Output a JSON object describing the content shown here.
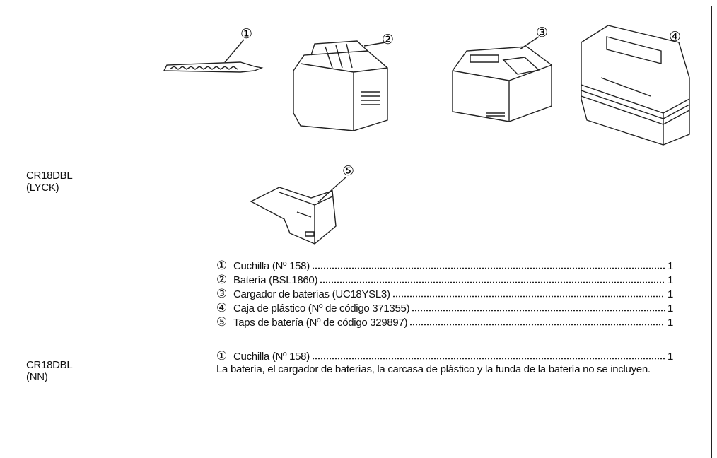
{
  "table": {
    "rows": [
      {
        "model": [
          "CR18DBL",
          "(LYCK)"
        ],
        "figure_labels": [
          "①",
          "②",
          "③",
          "④",
          "⑤"
        ],
        "items": [
          {
            "num": "①",
            "name": "Cuchilla (Nº 158)",
            "qty": "1"
          },
          {
            "num": "②",
            "name": "Batería (BSL1860)",
            "qty": "1"
          },
          {
            "num": "③",
            "name": "Cargador de baterías (UC18YSL3)",
            "qty": "1"
          },
          {
            "num": "④",
            "name": "Caja de plástico (Nº de código 371355)",
            "qty": "1"
          },
          {
            "num": "⑤",
            "name": "Taps de batería (Nº de código 329897)",
            "qty": "1"
          }
        ]
      },
      {
        "model": [
          "CR18DBL",
          "(NN)"
        ],
        "items": [
          {
            "num": "①",
            "name": "Cuchilla (Nº 158)",
            "qty": "1"
          }
        ],
        "note": "La batería, el cargador de baterías, la carcasa de plástico y la funda de la batería no se incluyen."
      }
    ]
  }
}
